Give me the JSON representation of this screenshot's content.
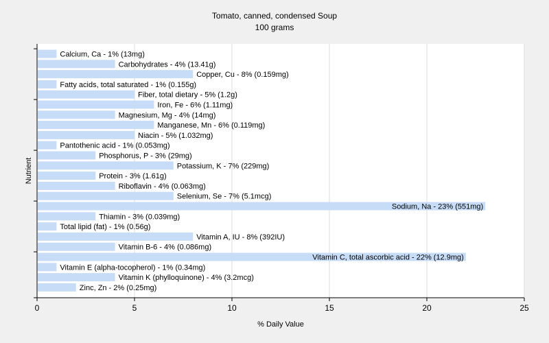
{
  "chart_data": {
    "type": "bar",
    "orientation": "horizontal",
    "title": "Tomato, canned, condensed Soup",
    "subtitle": "100 grams",
    "xlabel": "% Daily Value",
    "ylabel": "Nutrient",
    "xlim": [
      0,
      25
    ],
    "xticks": [
      "0",
      "5",
      "10",
      "15",
      "20",
      "25"
    ],
    "grid": true,
    "bar_color": "#c6dcf7",
    "categories": [
      "Calcium, Ca",
      "Carbohydrates",
      "Copper, Cu",
      "Fatty acids, total saturated",
      "Fiber, total dietary",
      "Iron, Fe",
      "Magnesium, Mg",
      "Manganese, Mn",
      "Niacin",
      "Pantothenic acid",
      "Phosphorus, P",
      "Potassium, K",
      "Protein",
      "Riboflavin",
      "Selenium, Se",
      "Sodium, Na",
      "Thiamin",
      "Total lipid (fat)",
      "Vitamin A, IU",
      "Vitamin B-6",
      "Vitamin C, total ascorbic acid",
      "Vitamin E (alpha-tocopherol)",
      "Vitamin K (phylloquinone)",
      "Zinc, Zn"
    ],
    "values": [
      1,
      4,
      8,
      1,
      5,
      6,
      4,
      6,
      5,
      1,
      3,
      7,
      3,
      4,
      7,
      23,
      3,
      1,
      8,
      4,
      22,
      1,
      4,
      2
    ],
    "labels": [
      "Calcium, Ca - 1% (13mg)",
      "Carbohydrates - 4% (13.41g)",
      "Copper, Cu - 8% (0.159mg)",
      "Fatty acids, total saturated - 1% (0.155g)",
      "Fiber, total dietary - 5% (1.2g)",
      "Iron, Fe - 6% (1.11mg)",
      "Magnesium, Mg - 4% (14mg)",
      "Manganese, Mn - 6% (0.119mg)",
      "Niacin - 5% (1.032mg)",
      "Pantothenic acid - 1% (0.053mg)",
      "Phosphorus, P - 3% (29mg)",
      "Potassium, K - 7% (229mg)",
      "Protein - 3% (1.61g)",
      "Riboflavin - 4% (0.063mg)",
      "Selenium, Se - 7% (5.1mcg)",
      "Sodium, Na - 23% (551mg)",
      "Thiamin - 3% (0.039mg)",
      "Total lipid (fat) - 1% (0.56g)",
      "Vitamin A, IU - 8% (392IU)",
      "Vitamin B-6 - 4% (0.086mg)",
      "Vitamin C, total ascorbic acid - 22% (12.9mg)",
      "Vitamin E (alpha-tocopherol) - 1% (0.34mg)",
      "Vitamin K (phylloquinone) - 4% (3.2mcg)",
      "Zinc, Zn - 2% (0.25mg)"
    ]
  }
}
